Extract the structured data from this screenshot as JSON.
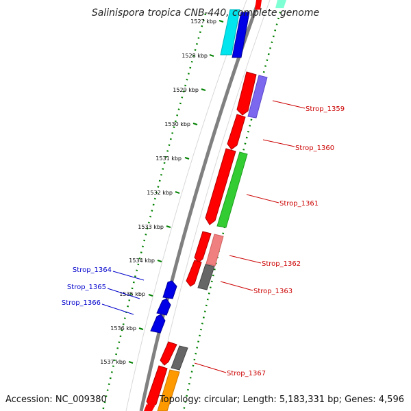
{
  "title": "Salinispora tropica CNB-440, complete genome",
  "footer": {
    "accession": "Accession: NC_009380",
    "topology": "Topology: circular; Length: 5,183,331 bp; Genes: 4,596"
  },
  "scale_labels": [
    "1527 kbp",
    "1528 kbp",
    "1529 kbp",
    "1530 kbp",
    "1531 kbp",
    "1532 kbp",
    "1533 kbp",
    "1534 kbp",
    "1535 kbp",
    "1536 kbp",
    "1537 kbp"
  ],
  "genes_forward": [
    "Strop_1359",
    "Strop_1360",
    "Strop_1361",
    "Strop_1362",
    "Strop_1363",
    "Strop_1367"
  ],
  "genes_reverse": [
    "Strop_1364",
    "Strop_1365",
    "Strop_1366"
  ],
  "colors": {
    "forward_label": "#cc0000",
    "reverse_label": "#0000cc",
    "cds_forward": "#ff0000",
    "cds_reverse": "#0000ff",
    "backbone": "#808080",
    "ticks": "#008000"
  }
}
